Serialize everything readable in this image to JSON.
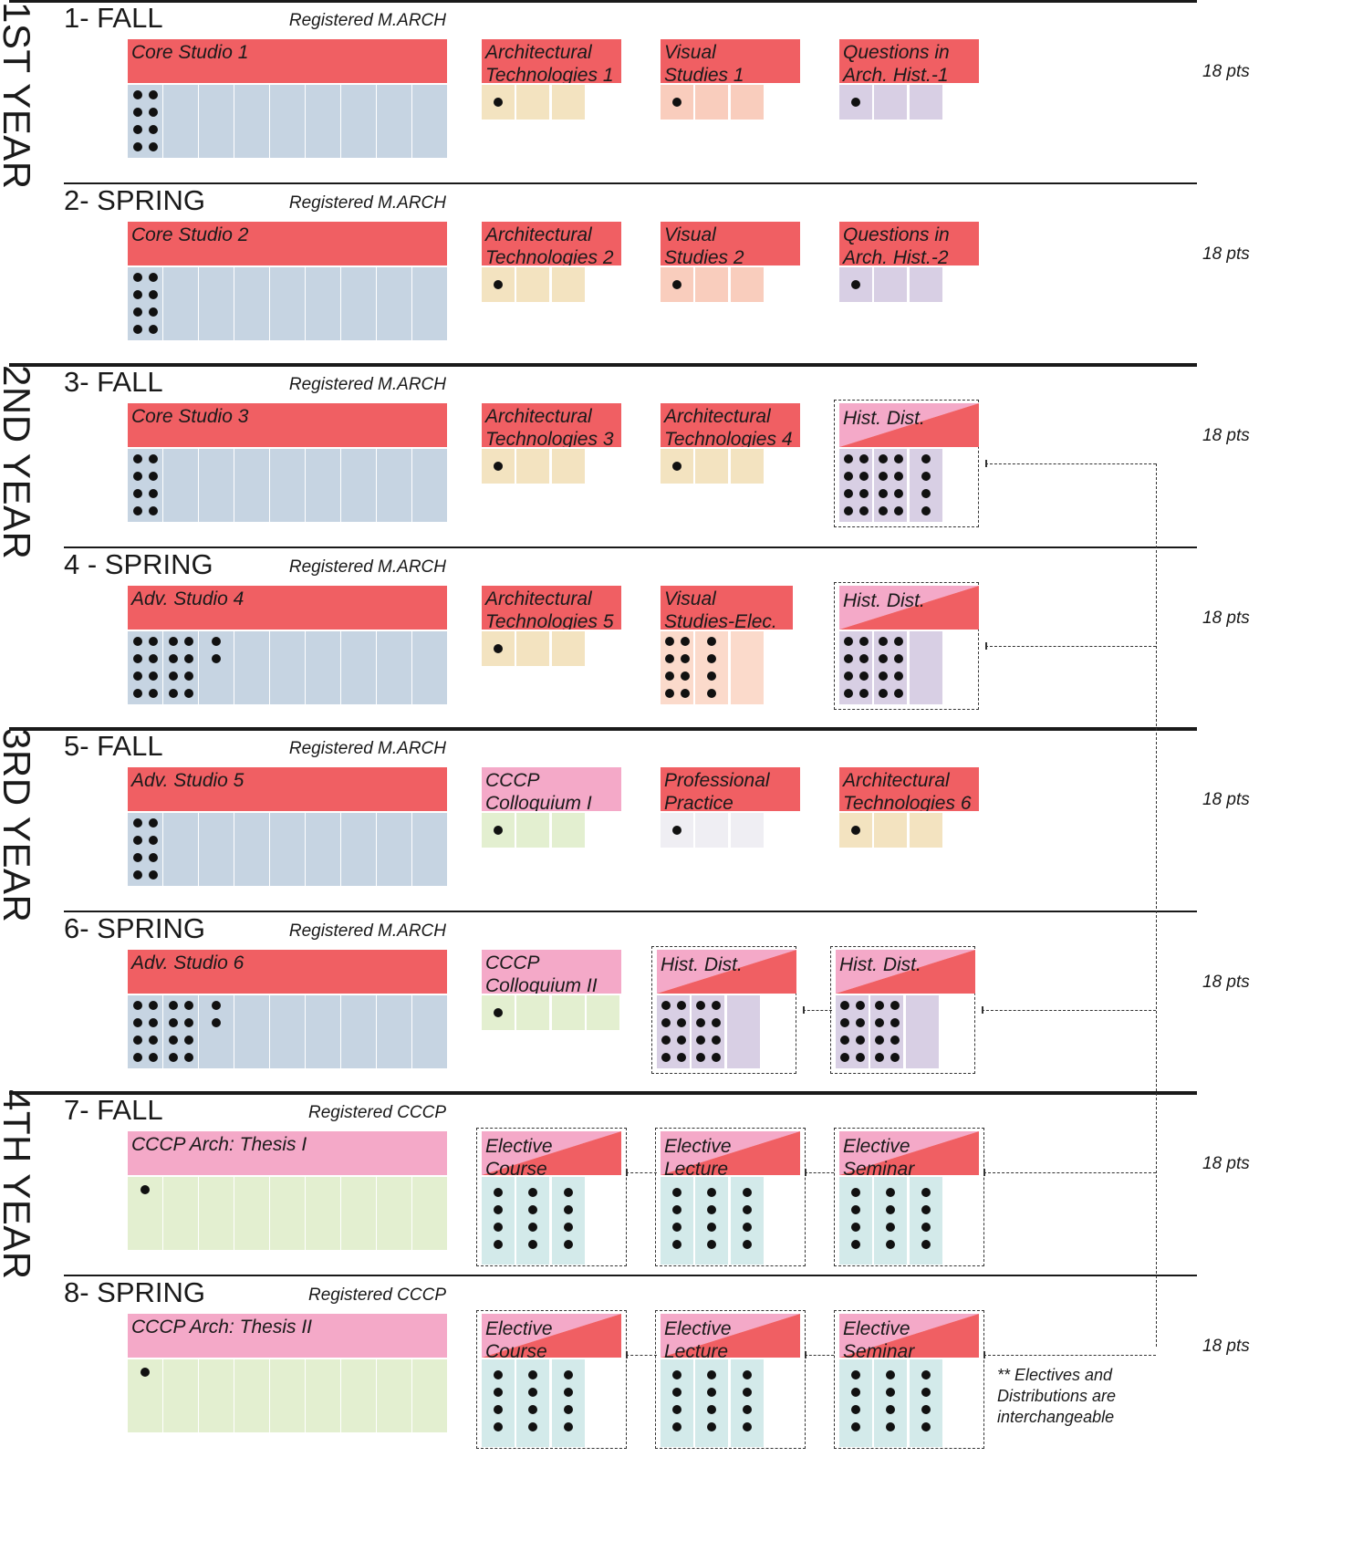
{
  "colors": {
    "studio_title": "#f05f63",
    "studio_cells": "#c6d4e2",
    "pink_title": "#f4a9c8",
    "thesis_cells": "#e3efd0",
    "arch_tech_cells": "#f3e3c0",
    "visual_cells": "#f9cdbd",
    "visual_elec_cells": "#fbdacb",
    "history_cells": "#d8cfe4",
    "colloquium_cells": "#e3efd0",
    "practice_cells": "#efeef3",
    "elective_cells": "#d3eaea",
    "line": "#1a1a1a"
  },
  "years": [
    "1ST YEAR",
    "2ND YEAR",
    "3RD YEAR",
    "4TH YEAR"
  ],
  "semesters": [
    {
      "title": "1- FALL",
      "registration": "Registered M.ARCH",
      "points": "18 pts",
      "studio": {
        "title": "Core Studio 1",
        "type": "core",
        "dots": 8,
        "dot_cols": 1
      },
      "courses": [
        {
          "title": [
            "Architectural",
            "Technologies 1"
          ],
          "kind": "arch_tech",
          "dots": 1
        },
        {
          "title": [
            "Visual",
            "Studies 1"
          ],
          "kind": "visual",
          "dots": 1
        },
        {
          "title": [
            "Questions in",
            "Arch. Hist.-1"
          ],
          "kind": "history",
          "dots": 1
        }
      ]
    },
    {
      "title": "2- SPRING",
      "registration": "Registered M.ARCH",
      "points": "18 pts",
      "studio": {
        "title": "Core Studio 2",
        "type": "core",
        "dots": 8,
        "dot_cols": 1
      },
      "courses": [
        {
          "title": [
            "Architectural",
            "Technologies 2"
          ],
          "kind": "arch_tech",
          "dots": 1
        },
        {
          "title": [
            "Visual",
            "Studies 2"
          ],
          "kind": "visual",
          "dots": 1
        },
        {
          "title": [
            "Questions in",
            "Arch. Hist.-2"
          ],
          "kind": "history",
          "dots": 1
        }
      ]
    },
    {
      "title": "3- FALL",
      "registration": "Registered M.ARCH",
      "points": "18 pts",
      "studio": {
        "title": "Core Studio 3",
        "type": "core",
        "dots": 8,
        "dot_cols": 1
      },
      "courses": [
        {
          "title": [
            "Architectural",
            "Technologies 3"
          ],
          "kind": "arch_tech",
          "dots": 1
        },
        {
          "title": [
            "Architectural",
            "Technologies 4"
          ],
          "kind": "arch_tech",
          "dots": 1
        },
        {
          "title": [
            "Hist. Dist."
          ],
          "kind": "dist",
          "dots": 20
        }
      ]
    },
    {
      "title": "4 - SPRING",
      "registration": "Registered M.ARCH",
      "points": "18 pts",
      "studio": {
        "title": "Adv. Studio 4",
        "type": "adv",
        "dots": 18,
        "dot_cols": 3
      },
      "courses": [
        {
          "title": [
            "Architectural",
            "Technologies 5"
          ],
          "kind": "arch_tech",
          "dots": 1
        },
        {
          "title": [
            "Visual",
            "Studies-Elec."
          ],
          "kind": "visual_elec",
          "dots": 12
        },
        {
          "title": [
            "Hist. Dist."
          ],
          "kind": "dist",
          "dots": 16
        }
      ]
    },
    {
      "title": "5- FALL",
      "registration": "Registered M.ARCH",
      "points": "18 pts",
      "studio": {
        "title": "Adv. Studio 5",
        "type": "adv",
        "dots": 8,
        "dot_cols": 1
      },
      "courses": [
        {
          "title": [
            "CCCP",
            "Colloquium I"
          ],
          "kind": "colloquium",
          "dots": 1
        },
        {
          "title": [
            "Professional",
            "Practice"
          ],
          "kind": "practice",
          "dots": 1
        },
        {
          "title": [
            "Architectural",
            "Technologies 6"
          ],
          "kind": "arch_tech",
          "dots": 1
        }
      ]
    },
    {
      "title": "6- SPRING",
      "registration": "Registered M.ARCH",
      "points": "18 pts",
      "studio": {
        "title": "Adv. Studio 6",
        "type": "adv",
        "dots": 18,
        "dot_cols": 3
      },
      "courses": [
        {
          "title": [
            "CCCP",
            "Colloquium II"
          ],
          "kind": "colloquium",
          "dots": 1
        },
        {
          "title": [
            "Hist. Dist."
          ],
          "kind": "dist",
          "dots": 16
        },
        {
          "title": [
            "Hist. Dist."
          ],
          "kind": "dist",
          "dots": 16
        }
      ]
    },
    {
      "title": "7- FALL",
      "registration": "Registered CCCP",
      "points": "18 pts",
      "studio": {
        "title": "CCCP Arch: Thesis I",
        "type": "thesis",
        "dots": 1,
        "dot_cols": 1
      },
      "courses": [
        {
          "title": [
            "Elective Course"
          ],
          "kind": "elective",
          "dots": 12
        },
        {
          "title": [
            "Elective Lecture"
          ],
          "kind": "elective",
          "dots": 12
        },
        {
          "title": [
            "Elective Seminar"
          ],
          "kind": "elective",
          "dots": 12
        }
      ]
    },
    {
      "title": "8- SPRING",
      "registration": "Registered CCCP",
      "points": "18 pts",
      "studio": {
        "title": "CCCP Arch: Thesis II",
        "type": "thesis",
        "dots": 1,
        "dot_cols": 1
      },
      "courses": [
        {
          "title": [
            "Elective Course"
          ],
          "kind": "elective",
          "dots": 12
        },
        {
          "title": [
            "Elective Lecture"
          ],
          "kind": "elective",
          "dots": 12
        },
        {
          "title": [
            "Elective Seminar"
          ],
          "kind": "elective",
          "dots": 12
        }
      ]
    }
  ],
  "note": [
    "**  Electives and",
    "Distributions are",
    "interchangeable"
  ]
}
